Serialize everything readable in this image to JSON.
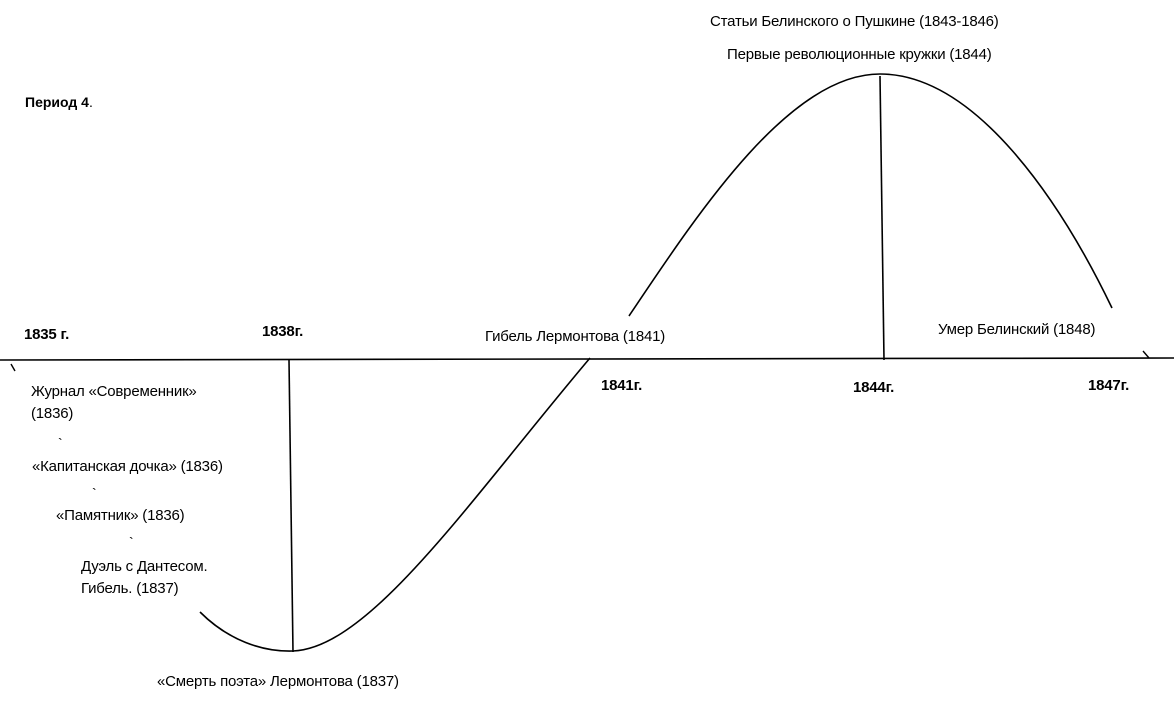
{
  "period_label": "Период 4",
  "period_dot": ".",
  "top": {
    "line1": "Статьи Белинского о Пушкине (1843-1846)",
    "line2": "Первые революционные кружки (1844)"
  },
  "axis_above": {
    "y1835": "1835 г.",
    "y1838": "1838г.",
    "lermontov_death": "Гибель Лермонтова (1841)",
    "belinsky_death": "Умер Белинский (1848)"
  },
  "axis_below": {
    "y1841": "1841г.",
    "y1844": "1844г.",
    "y1847": "1847г."
  },
  "events_left": {
    "sovremennik_1": "Журнал «Современник»",
    "sovremennik_2": "(1836)",
    "kapitanskaya": "«Капитанская дочка» (1836)",
    "pamyatnik": "«Памятник» (1836)",
    "duel_1": "Дуэль с Дантесом.",
    "duel_2": "Гибель. (1837)"
  },
  "bottom": {
    "smert_poeta": "«Смерть поэта» Лермонтова (1837)"
  },
  "tick_marks": [
    "`",
    "`",
    "`"
  ],
  "end_marks": [
    "`",
    "`"
  ]
}
